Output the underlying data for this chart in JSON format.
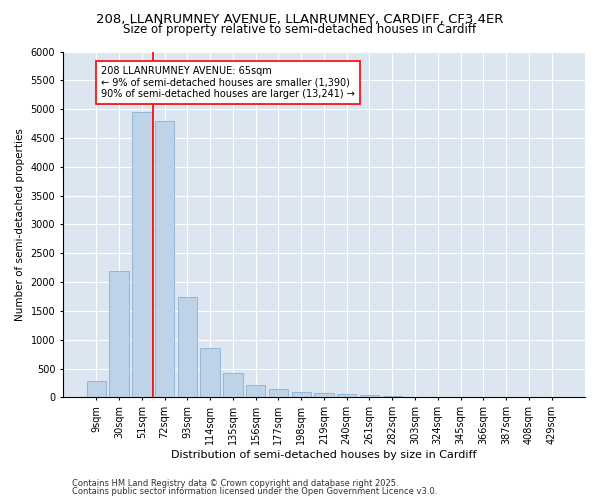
{
  "title1": "208, LLANRUMNEY AVENUE, LLANRUMNEY, CARDIFF, CF3 4ER",
  "title2": "Size of property relative to semi-detached houses in Cardiff",
  "xlabel": "Distribution of semi-detached houses by size in Cardiff",
  "ylabel": "Number of semi-detached properties",
  "categories": [
    "9sqm",
    "30sqm",
    "51sqm",
    "72sqm",
    "93sqm",
    "114sqm",
    "135sqm",
    "156sqm",
    "177sqm",
    "198sqm",
    "219sqm",
    "240sqm",
    "261sqm",
    "282sqm",
    "303sqm",
    "324sqm",
    "345sqm",
    "366sqm",
    "387sqm",
    "408sqm",
    "429sqm"
  ],
  "values": [
    280,
    2200,
    4950,
    4800,
    1750,
    850,
    420,
    220,
    145,
    100,
    70,
    55,
    35,
    20,
    12,
    8,
    5,
    3,
    2,
    1,
    1
  ],
  "bar_color": "#bed3e8",
  "bar_edge_color": "#7ba7cc",
  "vline_color": "red",
  "vline_x": 2.5,
  "annotation_text": "208 LLANRUMNEY AVENUE: 65sqm\n← 9% of semi-detached houses are smaller (1,390)\n90% of semi-detached houses are larger (13,241) →",
  "annotation_box_color": "red",
  "background_color": "#dce6f1",
  "grid_color": "white",
  "ylim": [
    0,
    6000
  ],
  "yticks": [
    0,
    500,
    1000,
    1500,
    2000,
    2500,
    3000,
    3500,
    4000,
    4500,
    5000,
    5500,
    6000
  ],
  "footer1": "Contains HM Land Registry data © Crown copyright and database right 2025.",
  "footer2": "Contains public sector information licensed under the Open Government Licence v3.0.",
  "title1_fontsize": 9.5,
  "title2_fontsize": 8.5,
  "xlabel_fontsize": 8,
  "ylabel_fontsize": 7.5,
  "tick_fontsize": 7,
  "annotation_fontsize": 7,
  "footer_fontsize": 6
}
